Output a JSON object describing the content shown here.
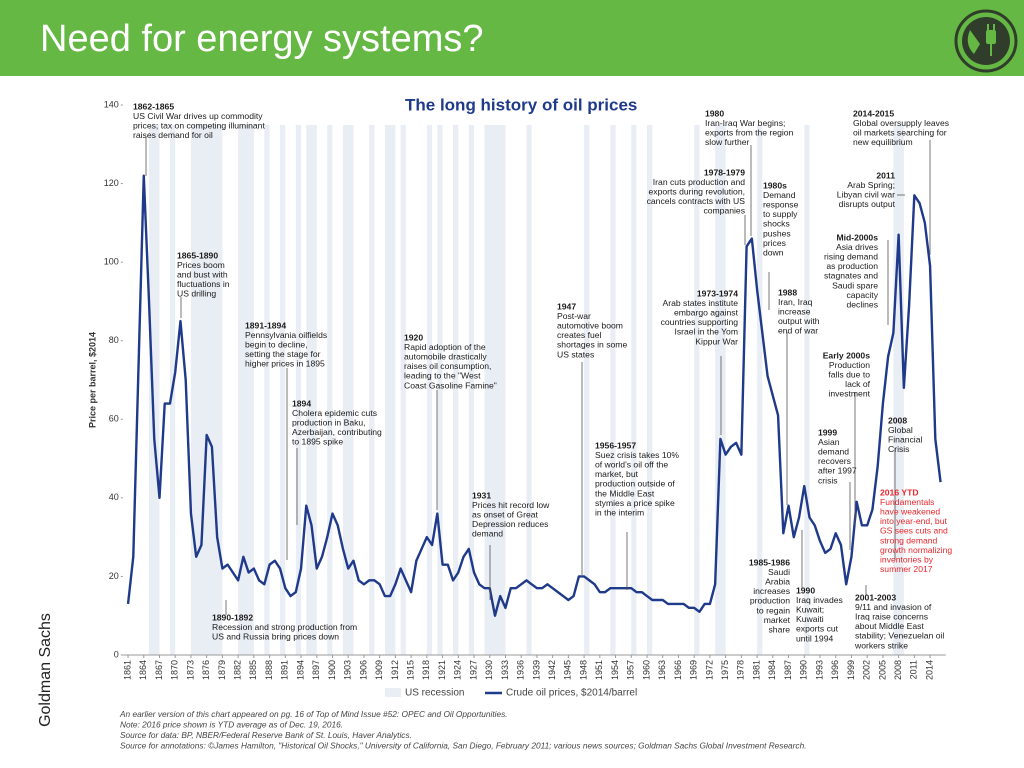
{
  "slide_title": "Need for energy systems?",
  "source_label": "Goldman Sachs",
  "chart_data": {
    "type": "line",
    "title": "The long history of oil prices",
    "y_label": "Price per barrel, $2014",
    "xlim": [
      1860,
      2017
    ],
    "ylim": [
      0,
      140
    ],
    "yticks": [
      0,
      20,
      40,
      60,
      80,
      100,
      120,
      140
    ],
    "xticks": [
      1861,
      1864,
      1867,
      1870,
      1873,
      1876,
      1879,
      1882,
      1885,
      1888,
      1891,
      1894,
      1897,
      1900,
      1903,
      1906,
      1909,
      1912,
      1915,
      1918,
      1921,
      1924,
      1927,
      1930,
      1933,
      1936,
      1939,
      1942,
      1945,
      1948,
      1951,
      1954,
      1957,
      1960,
      1963,
      1966,
      1969,
      1972,
      1975,
      1978,
      1981,
      1984,
      1987,
      1990,
      1993,
      1996,
      1999,
      2002,
      2005,
      2008,
      2011,
      2014
    ],
    "x": [
      1861,
      1862,
      1864,
      1865,
      1866,
      1867,
      1868,
      1869,
      1870,
      1871,
      1872,
      1873,
      1874,
      1875,
      1876,
      1877,
      1878,
      1879,
      1880,
      1881,
      1882,
      1883,
      1884,
      1885,
      1886,
      1887,
      1888,
      1889,
      1890,
      1891,
      1892,
      1893,
      1894,
      1895,
      1896,
      1897,
      1898,
      1899,
      1900,
      1901,
      1902,
      1903,
      1904,
      1905,
      1906,
      1907,
      1908,
      1909,
      1910,
      1911,
      1912,
      1913,
      1914,
      1915,
      1916,
      1917,
      1918,
      1919,
      1920,
      1921,
      1922,
      1923,
      1924,
      1925,
      1926,
      1927,
      1928,
      1929,
      1930,
      1931,
      1932,
      1933,
      1934,
      1935,
      1936,
      1937,
      1938,
      1939,
      1940,
      1941,
      1942,
      1943,
      1944,
      1945,
      1946,
      1947,
      1948,
      1949,
      1950,
      1951,
      1952,
      1953,
      1954,
      1955,
      1956,
      1957,
      1958,
      1959,
      1960,
      1961,
      1962,
      1963,
      1964,
      1965,
      1966,
      1967,
      1968,
      1969,
      1970,
      1971,
      1972,
      1973,
      1974,
      1975,
      1976,
      1977,
      1978,
      1979,
      1980,
      1981,
      1982,
      1983,
      1984,
      1985,
      1986,
      1987,
      1988,
      1989,
      1990,
      1991,
      1992,
      1993,
      1994,
      1995,
      1996,
      1997,
      1998,
      1999,
      2000,
      2001,
      2002,
      2003,
      2004,
      2005,
      2006,
      2007,
      2008,
      2009,
      2010,
      2011,
      2012,
      2013,
      2014,
      2015,
      2016
    ],
    "series": [
      {
        "name": "Crude oil prices, $2014/barrel",
        "color": "#1f3a8a",
        "values": [
          13,
          25,
          122,
          90,
          55,
          40,
          64,
          64,
          72,
          85,
          70,
          36,
          25,
          28,
          56,
          53,
          30,
          22,
          23,
          21,
          19,
          25,
          21,
          22,
          19,
          18,
          23,
          24,
          22,
          17,
          15,
          16,
          22,
          38,
          33,
          22,
          25,
          30,
          36,
          33,
          27,
          22,
          24,
          19,
          18,
          19,
          19,
          18,
          15,
          15,
          18,
          22,
          19,
          16,
          24,
          27,
          30,
          28,
          36,
          23,
          23,
          19,
          21,
          25,
          27,
          21,
          18,
          17,
          17,
          10,
          15,
          12,
          17,
          17,
          18,
          19,
          18,
          17,
          17,
          18,
          17,
          16,
          15,
          14,
          15,
          20,
          20,
          19,
          18,
          16,
          16,
          17,
          17,
          17,
          17,
          17,
          16,
          16,
          15,
          14,
          14,
          14,
          13,
          13,
          13,
          13,
          12,
          12,
          11,
          13,
          13,
          18,
          55,
          51,
          53,
          54,
          51,
          104,
          106,
          93,
          82,
          71,
          66,
          61,
          31,
          38,
          30,
          35,
          43,
          35,
          33,
          29,
          26,
          27,
          31,
          28,
          18,
          25,
          39,
          33,
          33,
          37,
          48,
          64,
          76,
          82,
          107,
          68,
          89,
          117,
          115,
          110,
          99,
          55,
          44
        ]
      }
    ],
    "recession_label": "US recession",
    "recession_color": "#e9edf4",
    "recessions": [
      [
        1865,
        1867
      ],
      [
        1869,
        1870
      ],
      [
        1873,
        1879
      ],
      [
        1882,
        1885
      ],
      [
        1887,
        1888
      ],
      [
        1890,
        1891
      ],
      [
        1893,
        1894
      ],
      [
        1895,
        1897
      ],
      [
        1899,
        1900
      ],
      [
        1902,
        1904
      ],
      [
        1907,
        1908
      ],
      [
        1910,
        1912
      ],
      [
        1913,
        1914
      ],
      [
        1918,
        1919
      ],
      [
        1920,
        1921
      ],
      [
        1923,
        1924
      ],
      [
        1926,
        1927
      ],
      [
        1929,
        1933
      ],
      [
        1937,
        1938
      ],
      [
        1948,
        1949
      ],
      [
        1953,
        1954
      ],
      [
        1957,
        1958
      ],
      [
        1960,
        1961
      ],
      [
        1969,
        1970
      ],
      [
        1973,
        1975
      ],
      [
        1981,
        1982
      ],
      [
        1990,
        1991
      ],
      [
        2007,
        2009
      ]
    ],
    "annotations": [
      {
        "label": "1862-1865",
        "lines": [
          "US Civil War drives up commodity",
          "prices; tax on competing illuminant",
          "raises demand for oil"
        ]
      },
      {
        "label": "1865-1890",
        "lines": [
          "Prices boom",
          "and bust with",
          "fluctuations in",
          "US drilling"
        ]
      },
      {
        "label": "1891-1894",
        "lines": [
          "Pennsylvania oilfields",
          "begin to decline,",
          "setting the stage for",
          "higher prices in 1895"
        ]
      },
      {
        "label": "1894",
        "lines": [
          "Cholera epidemic cuts",
          "production in Baku,",
          "Azerbaijan, contributing",
          "to 1895 spike"
        ]
      },
      {
        "label": "1890-1892",
        "lines": [
          "Recession and strong production from",
          "US and Russia bring prices down"
        ]
      },
      {
        "label": "1920",
        "lines": [
          "Rapid adoption of the",
          "automobile drastically",
          "raises oil consumption,",
          "leading to the \"West",
          "Coast Gasoline Famine\""
        ]
      },
      {
        "label": "1931",
        "lines": [
          "Prices hit record low",
          "as onset of Great",
          "Depression reduces",
          "demand"
        ]
      },
      {
        "label": "1947",
        "lines": [
          "Post-war",
          "automotive boom",
          "creates fuel",
          "shortages in some",
          "US states"
        ]
      },
      {
        "label": "1956-1957",
        "lines": [
          "Suez crisis takes 10%",
          "of world's oil off the",
          "market, but",
          "production outside of",
          "the Middle East",
          "stymies a price spike",
          "in the interim"
        ]
      },
      {
        "label": "1973-1974",
        "lines": [
          "Arab states institute",
          "embargo against",
          "countries supporting",
          "Israel in the Yom",
          "Kippur War"
        ]
      },
      {
        "label": "1978-1979",
        "lines": [
          "Iran cuts production and",
          "exports during revolution,",
          "cancels contracts with US",
          "companies"
        ]
      },
      {
        "label": "1980",
        "lines": [
          "Iran-Iraq War begins;",
          "exports from the region",
          "slow further"
        ]
      },
      {
        "label": "1980s",
        "lines": [
          "Demand",
          "response",
          "to supply",
          "shocks",
          "pushes",
          "prices",
          "down"
        ]
      },
      {
        "label": "1988",
        "lines": [
          "Iran, Iraq",
          "increase",
          "output with",
          "end of war"
        ]
      },
      {
        "label": "1985-1986",
        "lines": [
          "Saudi",
          "Arabia",
          "increases",
          "production",
          "to regain",
          "market",
          "share"
        ]
      },
      {
        "label": "1990",
        "lines": [
          "Iraq invades",
          "Kuwait;",
          "Kuwaiti",
          "exports cut",
          "until 1994"
        ]
      },
      {
        "label": "1999",
        "lines": [
          "Asian",
          "demand",
          "recovers",
          "after 1997",
          "crisis"
        ]
      },
      {
        "label": "Early 2000s",
        "lines": [
          "Production",
          "falls due to",
          "lack of",
          "investment"
        ]
      },
      {
        "label": "Mid-2000s",
        "lines": [
          "Asia drives",
          "rising demand",
          "as production",
          "stagnates and",
          "Saudi spare",
          "capacity",
          "declines"
        ]
      },
      {
        "label": "2011",
        "lines": [
          "Arab Spring;",
          "Libyan civil war",
          "disrupts output"
        ]
      },
      {
        "label": "2014-2015",
        "lines": [
          "Global oversupply leaves",
          "oil markets searching for",
          "new equilibrium"
        ]
      },
      {
        "label": "2008",
        "lines": [
          "Global",
          "Financial",
          "Crisis"
        ]
      },
      {
        "label": "2016 YTD",
        "color": "#e8262b",
        "lines": [
          "Fundamentals",
          "have weakened",
          "into year-end, but",
          "GS sees cuts and",
          "strong demand",
          "growth normalizing",
          "inventories by",
          "summer 2017"
        ]
      },
      {
        "label": "2001-2003",
        "lines": [
          "9/11 and invasion of",
          "Iraq raise concerns",
          "about Middle East",
          "stability; Venezuelan oil",
          "workers strike"
        ]
      }
    ],
    "notes": [
      "An earlier version of this chart appeared on pg. 16 of Top of Mind Issue #52: OPEC and Oil Opportunities.",
      "Note: 2016 price shown is YTD average as of Dec. 19, 2016.",
      "Source for data: BP, NBER/Federal Reserve Bank of St. Louis, Haver Analytics.",
      "Source for annotations: ©James Hamilton, \"Historical Oil Shocks,\" University of California, San Diego, February 2011; various news sources; Goldman Sachs Global Investment Research."
    ]
  }
}
